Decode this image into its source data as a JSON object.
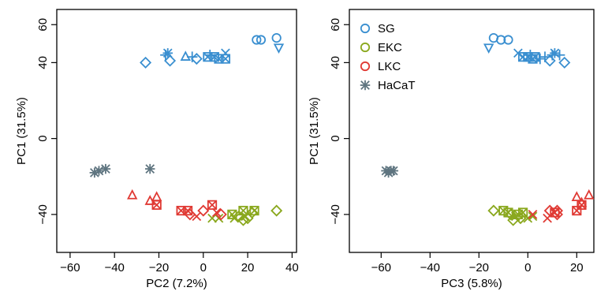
{
  "colors": {
    "SG": "#3a8fd0",
    "EKC": "#8aa81e",
    "LKC": "#e03a34",
    "HaCaT": "#5f7580"
  },
  "chart_data": [
    {
      "type": "scatter",
      "xlabel": "PC2 (7.2%)",
      "ylabel": "PC1 (31.5%)",
      "xlim": [
        -66,
        42
      ],
      "ylim": [
        -60,
        68
      ],
      "xticks": [
        -60,
        -40,
        -20,
        0,
        20,
        40
      ],
      "xtick_labels": [
        "−60",
        "−40",
        "−20",
        "0",
        "20",
        "40"
      ],
      "yticks": [
        -40,
        0,
        40,
        60
      ],
      "ytick_labels": [
        "−40",
        "0",
        "40",
        "60"
      ],
      "legend": null,
      "points": [
        {
          "x": -26,
          "y": 40,
          "g": "SG",
          "m": "diamond"
        },
        {
          "x": -17,
          "y": 44,
          "g": "SG",
          "m": "plus"
        },
        {
          "x": -16,
          "y": 45,
          "g": "SG",
          "m": "star"
        },
        {
          "x": -15,
          "y": 41,
          "g": "SG",
          "m": "diamond"
        },
        {
          "x": -8,
          "y": 43,
          "g": "SG",
          "m": "triangle"
        },
        {
          "x": -5,
          "y": 43,
          "g": "SG",
          "m": "plus"
        },
        {
          "x": -3,
          "y": 42,
          "g": "SG",
          "m": "diamond"
        },
        {
          "x": 2,
          "y": 43,
          "g": "SG",
          "m": "square"
        },
        {
          "x": 3,
          "y": 44,
          "g": "SG",
          "m": "plus"
        },
        {
          "x": 5,
          "y": 43,
          "g": "SG",
          "m": "square"
        },
        {
          "x": 7,
          "y": 42,
          "g": "SG",
          "m": "square"
        },
        {
          "x": 10,
          "y": 42,
          "g": "SG",
          "m": "square"
        },
        {
          "x": 10,
          "y": 45,
          "g": "SG",
          "m": "x"
        },
        {
          "x": 24,
          "y": 52,
          "g": "SG",
          "m": "circle"
        },
        {
          "x": 26,
          "y": 52,
          "g": "SG",
          "m": "circle"
        },
        {
          "x": 33,
          "y": 53,
          "g": "SG",
          "m": "circle"
        },
        {
          "x": 34,
          "y": 48,
          "g": "SG",
          "m": "tri-down"
        },
        {
          "x": 13,
          "y": -40,
          "g": "EKC",
          "m": "square"
        },
        {
          "x": 14,
          "y": -42,
          "g": "EKC",
          "m": "x"
        },
        {
          "x": 16,
          "y": -41,
          "g": "EKC",
          "m": "diamond"
        },
        {
          "x": 18,
          "y": -43,
          "g": "EKC",
          "m": "diamond"
        },
        {
          "x": 18,
          "y": -38,
          "g": "EKC",
          "m": "square"
        },
        {
          "x": 19,
          "y": -41,
          "g": "EKC",
          "m": "x"
        },
        {
          "x": 20,
          "y": -42,
          "g": "EKC",
          "m": "diamond"
        },
        {
          "x": 22,
          "y": -39,
          "g": "EKC",
          "m": "diamond"
        },
        {
          "x": 23,
          "y": -38,
          "g": "EKC",
          "m": "square"
        },
        {
          "x": 33,
          "y": -38,
          "g": "EKC",
          "m": "diamond"
        },
        {
          "x": 4,
          "y": -42,
          "g": "EKC",
          "m": "x"
        },
        {
          "x": 7,
          "y": -42,
          "g": "EKC",
          "m": "x"
        },
        {
          "x": -32,
          "y": -30,
          "g": "LKC",
          "m": "triangle"
        },
        {
          "x": -24,
          "y": -33,
          "g": "LKC",
          "m": "triangle"
        },
        {
          "x": -21,
          "y": -31,
          "g": "LKC",
          "m": "triangle"
        },
        {
          "x": -21,
          "y": -35,
          "g": "LKC",
          "m": "square"
        },
        {
          "x": -10,
          "y": -38,
          "g": "LKC",
          "m": "square"
        },
        {
          "x": -7,
          "y": -38,
          "g": "LKC",
          "m": "square"
        },
        {
          "x": -6,
          "y": -40,
          "g": "LKC",
          "m": "diamond"
        },
        {
          "x": -3,
          "y": -41,
          "g": "LKC",
          "m": "x"
        },
        {
          "x": 0,
          "y": -38,
          "g": "LKC",
          "m": "diamond"
        },
        {
          "x": 4,
          "y": -35,
          "g": "LKC",
          "m": "square"
        },
        {
          "x": 6,
          "y": -39,
          "g": "LKC",
          "m": "x"
        },
        {
          "x": 8,
          "y": -40,
          "g": "LKC",
          "m": "diamond"
        },
        {
          "x": -49,
          "y": -18,
          "g": "HaCaT",
          "m": "star"
        },
        {
          "x": -47,
          "y": -17,
          "g": "HaCaT",
          "m": "star"
        },
        {
          "x": -44,
          "y": -16,
          "g": "HaCaT",
          "m": "star"
        },
        {
          "x": -24,
          "y": -16,
          "g": "HaCaT",
          "m": "star"
        }
      ]
    },
    {
      "type": "scatter",
      "xlabel": "PC3 (5.8%)",
      "ylabel": "PC1 (31.5%)",
      "xlim": [
        -73,
        27
      ],
      "ylim": [
        -60,
        68
      ],
      "xticks": [
        -60,
        -40,
        -20,
        0,
        20
      ],
      "xtick_labels": [
        "−60",
        "−40",
        "−20",
        "0",
        "20"
      ],
      "yticks": [
        -40,
        0,
        40,
        60
      ],
      "ytick_labels": [
        "−40",
        "0",
        "40",
        "60"
      ],
      "legend": {
        "position": "top-left",
        "entries": [
          {
            "label": "SG",
            "group": "SG",
            "marker": "circle"
          },
          {
            "label": "EKC",
            "group": "EKC",
            "marker": "circle"
          },
          {
            "label": "LKC",
            "group": "LKC",
            "marker": "circle"
          },
          {
            "label": "HaCaT",
            "group": "HaCaT",
            "marker": "star"
          }
        ]
      },
      "points": [
        {
          "x": -16,
          "y": 48,
          "g": "SG",
          "m": "tri-down"
        },
        {
          "x": -14,
          "y": 53,
          "g": "SG",
          "m": "circle"
        },
        {
          "x": -11,
          "y": 52,
          "g": "SG",
          "m": "circle"
        },
        {
          "x": -8,
          "y": 52,
          "g": "SG",
          "m": "circle"
        },
        {
          "x": -4,
          "y": 45,
          "g": "SG",
          "m": "x"
        },
        {
          "x": -2,
          "y": 43,
          "g": "SG",
          "m": "square"
        },
        {
          "x": 0,
          "y": 43,
          "g": "SG",
          "m": "square"
        },
        {
          "x": 1,
          "y": 44,
          "g": "SG",
          "m": "plus"
        },
        {
          "x": 2,
          "y": 42,
          "g": "SG",
          "m": "square"
        },
        {
          "x": 3,
          "y": 43,
          "g": "SG",
          "m": "square"
        },
        {
          "x": 5,
          "y": 42,
          "g": "SG",
          "m": "plus"
        },
        {
          "x": 7,
          "y": 43,
          "g": "SG",
          "m": "plus"
        },
        {
          "x": 9,
          "y": 41,
          "g": "SG",
          "m": "diamond"
        },
        {
          "x": 10,
          "y": 44,
          "g": "SG",
          "m": "plus"
        },
        {
          "x": 11,
          "y": 45,
          "g": "SG",
          "m": "star"
        },
        {
          "x": 13,
          "y": 44,
          "g": "SG",
          "m": "plus"
        },
        {
          "x": 15,
          "y": 40,
          "g": "SG",
          "m": "diamond"
        },
        {
          "x": -14,
          "y": -38,
          "g": "EKC",
          "m": "diamond"
        },
        {
          "x": -10,
          "y": -38,
          "g": "EKC",
          "m": "square"
        },
        {
          "x": -8,
          "y": -39,
          "g": "EKC",
          "m": "square"
        },
        {
          "x": -7,
          "y": -40,
          "g": "EKC",
          "m": "diamond"
        },
        {
          "x": -6,
          "y": -43,
          "g": "EKC",
          "m": "diamond"
        },
        {
          "x": -5,
          "y": -41,
          "g": "EKC",
          "m": "x"
        },
        {
          "x": -4,
          "y": -40,
          "g": "EKC",
          "m": "square"
        },
        {
          "x": -3,
          "y": -42,
          "g": "EKC",
          "m": "diamond"
        },
        {
          "x": -2,
          "y": -39,
          "g": "EKC",
          "m": "square"
        },
        {
          "x": 0,
          "y": -42,
          "g": "EKC",
          "m": "x"
        },
        {
          "x": 2,
          "y": -41,
          "g": "EKC",
          "m": "x"
        },
        {
          "x": 2,
          "y": -40,
          "g": "LKC",
          "m": "x"
        },
        {
          "x": 8,
          "y": -42,
          "g": "LKC",
          "m": "x"
        },
        {
          "x": 9,
          "y": -38,
          "g": "LKC",
          "m": "diamond"
        },
        {
          "x": 11,
          "y": -39,
          "g": "LKC",
          "m": "square"
        },
        {
          "x": 12,
          "y": -40,
          "g": "LKC",
          "m": "diamond"
        },
        {
          "x": 12,
          "y": -38,
          "g": "LKC",
          "m": "diamond"
        },
        {
          "x": 20,
          "y": -38,
          "g": "LKC",
          "m": "square"
        },
        {
          "x": 20,
          "y": -31,
          "g": "LKC",
          "m": "triangle"
        },
        {
          "x": 22,
          "y": -35,
          "g": "LKC",
          "m": "square"
        },
        {
          "x": 22,
          "y": -34,
          "g": "LKC",
          "m": "triangle"
        },
        {
          "x": 25,
          "y": -30,
          "g": "LKC",
          "m": "triangle"
        },
        {
          "x": -58,
          "y": -17,
          "g": "HaCaT",
          "m": "star"
        },
        {
          "x": -57,
          "y": -18,
          "g": "HaCaT",
          "m": "star"
        },
        {
          "x": -56,
          "y": -17,
          "g": "HaCaT",
          "m": "star"
        },
        {
          "x": -55,
          "y": -17,
          "g": "HaCaT",
          "m": "star"
        }
      ]
    }
  ]
}
